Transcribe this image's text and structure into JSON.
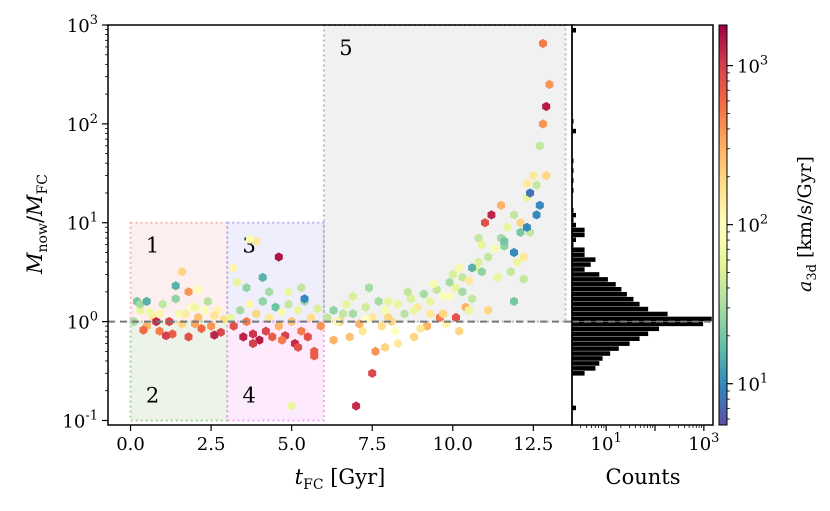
{
  "chart_data": [
    {
      "type": "scatter",
      "description_of_marks": "hexbin points colored by a_3d (log color scale)",
      "xlabel": "t_FC [Gyr]",
      "ylabel": "M_now/M_FC",
      "xlim": [
        -0.7,
        13.7
      ],
      "ylim": [
        0.09,
        1000
      ],
      "yscale": "log",
      "xticks": [
        "0.0",
        "2.5",
        "5.0",
        "7.5",
        "10.0",
        "12.5"
      ],
      "yticks": [
        "10^-1",
        "10^0",
        "10^1",
        "10^2",
        "10^3"
      ],
      "reference_line_y": 1.0,
      "regions": [
        {
          "label": "1",
          "x": [
            0,
            3
          ],
          "y": [
            1,
            10
          ],
          "color": "#f4b6b6"
        },
        {
          "label": "2",
          "x": [
            0,
            3
          ],
          "y": [
            0.1,
            1
          ],
          "color": "#a9cfa0"
        },
        {
          "label": "3",
          "x": [
            3,
            6
          ],
          "y": [
            1,
            10
          ],
          "color": "#b3b3f0"
        },
        {
          "label": "4",
          "x": [
            3,
            6
          ],
          "y": [
            0.1,
            1
          ],
          "color": "#f4a6f4"
        },
        {
          "label": "5",
          "x": [
            6,
            13.5
          ],
          "y": [
            1,
            1000
          ],
          "color": "#bdbdbd"
        }
      ],
      "points": [
        [
          0.1,
          1.0,
          30
        ],
        [
          0.3,
          1.3,
          60
        ],
        [
          0.5,
          0.9,
          300
        ],
        [
          0.7,
          1.1,
          150
        ],
        [
          0.9,
          0.8,
          500
        ],
        [
          1.0,
          1.5,
          40
        ],
        [
          1.2,
          1.0,
          900
        ],
        [
          1.3,
          0.75,
          700
        ],
        [
          1.5,
          1.2,
          80
        ],
        [
          1.6,
          0.95,
          200
        ],
        [
          1.8,
          0.7,
          800
        ],
        [
          1.9,
          1.4,
          100
        ],
        [
          2.1,
          1.1,
          250
        ],
        [
          2.2,
          0.85,
          600
        ],
        [
          2.4,
          1.6,
          35
        ],
        [
          2.5,
          0.9,
          400
        ],
        [
          2.7,
          1.3,
          120
        ],
        [
          2.8,
          0.78,
          900
        ],
        [
          2.9,
          1.05,
          180
        ],
        [
          0.2,
          1.6,
          20
        ],
        [
          0.4,
          0.82,
          600
        ],
        [
          0.6,
          1.25,
          70
        ],
        [
          0.8,
          1.0,
          1200
        ],
        [
          1.1,
          0.72,
          1000
        ],
        [
          1.4,
          1.7,
          25
        ],
        [
          1.7,
          1.2,
          140
        ],
        [
          2.0,
          0.95,
          350
        ],
        [
          2.3,
          1.3,
          90
        ],
        [
          2.6,
          0.73,
          1300
        ],
        [
          1.6,
          3.2,
          200
        ],
        [
          1.4,
          2.3,
          15
        ],
        [
          2.1,
          2.1,
          90
        ],
        [
          0.3,
          1.5,
          30
        ],
        [
          2.0,
          1.4,
          70
        ],
        [
          1.8,
          2.0,
          400
        ],
        [
          0.9,
          1.2,
          120
        ],
        [
          2.6,
          1.15,
          160
        ],
        [
          0.5,
          1.6,
          15
        ],
        [
          3.1,
          1.1,
          60
        ],
        [
          3.2,
          0.9,
          800
        ],
        [
          3.4,
          1.3,
          30
        ],
        [
          3.5,
          0.7,
          1300
        ],
        [
          3.6,
          1.0,
          500
        ],
        [
          3.7,
          1.5,
          120
        ],
        [
          3.8,
          0.75,
          1100
        ],
        [
          3.9,
          1.2,
          200
        ],
        [
          4.0,
          0.65,
          1400
        ],
        [
          4.1,
          1.6,
          25
        ],
        [
          4.2,
          0.8,
          900
        ],
        [
          4.3,
          1.1,
          150
        ],
        [
          4.4,
          0.7,
          700
        ],
        [
          4.5,
          1.4,
          18
        ],
        [
          4.6,
          0.9,
          300
        ],
        [
          4.7,
          1.25,
          80
        ],
        [
          4.8,
          0.72,
          1000
        ],
        [
          4.9,
          1.5,
          40
        ],
        [
          5.0,
          1.0,
          250
        ],
        [
          5.1,
          0.6,
          1200
        ],
        [
          5.2,
          1.3,
          60
        ],
        [
          5.3,
          0.8,
          500
        ],
        [
          5.4,
          1.6,
          30
        ],
        [
          5.5,
          0.7,
          800
        ],
        [
          5.6,
          1.1,
          180
        ],
        [
          5.7,
          0.5,
          700
        ],
        [
          5.8,
          1.35,
          50
        ],
        [
          5.9,
          0.9,
          400
        ],
        [
          3.3,
          2.5,
          60
        ],
        [
          3.6,
          2.2,
          25
        ],
        [
          3.9,
          6.5,
          150
        ],
        [
          4.6,
          4.5,
          1500
        ],
        [
          4.1,
          2.8,
          15
        ],
        [
          3.7,
          6.8,
          80
        ],
        [
          3.8,
          0.6,
          1000
        ],
        [
          4.7,
          0.65,
          500
        ],
        [
          5.2,
          0.55,
          800
        ],
        [
          5.0,
          0.14,
          60
        ],
        [
          5.7,
          0.45,
          700
        ],
        [
          5.4,
          1.7,
          10
        ],
        [
          4.3,
          2.0,
          30
        ],
        [
          4.9,
          2.0,
          60
        ],
        [
          5.3,
          2.2,
          40
        ],
        [
          3.2,
          3.5,
          120
        ],
        [
          6.1,
          1.1,
          40
        ],
        [
          6.3,
          1.3,
          25
        ],
        [
          6.5,
          1.0,
          200
        ],
        [
          6.7,
          1.5,
          60
        ],
        [
          6.9,
          1.2,
          30
        ],
        [
          7.1,
          0.95,
          300
        ],
        [
          7.3,
          1.4,
          45
        ],
        [
          7.5,
          1.1,
          150
        ],
        [
          7.7,
          1.6,
          30
        ],
        [
          7.9,
          1.3,
          80
        ],
        [
          8.1,
          1.0,
          200
        ],
        [
          8.3,
          1.5,
          60
        ],
        [
          8.5,
          1.2,
          35
        ],
        [
          8.7,
          1.7,
          50
        ],
        [
          8.9,
          1.4,
          150
        ],
        [
          9.1,
          1.9,
          30
        ],
        [
          9.3,
          1.6,
          60
        ],
        [
          9.5,
          2.1,
          40
        ],
        [
          9.7,
          1.8,
          90
        ],
        [
          9.9,
          2.5,
          30
        ],
        [
          10.1,
          2.2,
          60
        ],
        [
          10.3,
          2.8,
          40
        ],
        [
          10.5,
          2.6,
          150
        ],
        [
          10.7,
          3.5,
          60
        ],
        [
          10.9,
          3.2,
          25
        ],
        [
          11.1,
          4.5,
          40
        ],
        [
          11.3,
          5.5,
          80
        ],
        [
          11.5,
          7.0,
          30
        ],
        [
          11.7,
          9.0,
          60
        ],
        [
          11.9,
          12.0,
          40
        ],
        [
          12.1,
          10.0,
          200
        ],
        [
          12.3,
          18.0,
          60
        ],
        [
          12.5,
          30.0,
          150
        ],
        [
          12.7,
          60.0,
          40
        ],
        [
          12.8,
          100.0,
          400
        ],
        [
          12.9,
          30.0,
          200
        ],
        [
          13.0,
          250.0,
          400
        ],
        [
          12.8,
          650.0,
          500
        ],
        [
          12.9,
          150.0,
          1400
        ],
        [
          12.6,
          12.0,
          10
        ],
        [
          12.3,
          25.0,
          150
        ],
        [
          12.1,
          8.0,
          20
        ],
        [
          11.9,
          5.0,
          10
        ],
        [
          11.5,
          15.0,
          300
        ],
        [
          11.2,
          12.0,
          1300
        ],
        [
          11.0,
          10.0,
          800
        ],
        [
          10.8,
          7.0,
          40
        ],
        [
          10.6,
          3.5,
          15
        ],
        [
          10.4,
          1.4,
          300
        ],
        [
          10.2,
          0.8,
          200
        ],
        [
          9.6,
          1.1,
          500
        ],
        [
          9.2,
          0.9,
          300
        ],
        [
          8.8,
          0.7,
          200
        ],
        [
          8.3,
          0.6,
          150
        ],
        [
          7.9,
          0.55,
          200
        ],
        [
          7.6,
          0.5,
          400
        ],
        [
          7.5,
          0.3,
          900
        ],
        [
          7.0,
          0.14,
          1200
        ],
        [
          6.3,
          0.65,
          300
        ],
        [
          6.8,
          0.7,
          250
        ],
        [
          7.2,
          0.8,
          150
        ],
        [
          7.8,
          0.9,
          180
        ],
        [
          8.2,
          0.8,
          100
        ],
        [
          9.0,
          0.85,
          150
        ],
        [
          9.8,
          0.95,
          120
        ],
        [
          10.5,
          1.3,
          60
        ],
        [
          11.6,
          5.8,
          25
        ],
        [
          12.7,
          15.0,
          10
        ],
        [
          12.6,
          24.0,
          40
        ],
        [
          12.4,
          20.0,
          8
        ],
        [
          6.9,
          1.8,
          50
        ],
        [
          7.4,
          2.2,
          30
        ],
        [
          8.0,
          1.6,
          60
        ],
        [
          8.6,
          2.0,
          40
        ],
        [
          9.4,
          2.4,
          80
        ],
        [
          10.0,
          3.0,
          50
        ],
        [
          10.2,
          3.5,
          80
        ],
        [
          10.8,
          4.0,
          50
        ],
        [
          11.4,
          2.8,
          60
        ],
        [
          11.8,
          3.2,
          40
        ],
        [
          12.0,
          4.0,
          60
        ],
        [
          12.2,
          4.5,
          150
        ],
        [
          12.4,
          8.0,
          40
        ],
        [
          11.6,
          6.5,
          20
        ],
        [
          10.9,
          6.0,
          60
        ],
        [
          10.3,
          2.0,
          30
        ],
        [
          9.9,
          1.8,
          90
        ],
        [
          9.3,
          1.2,
          150
        ],
        [
          8.8,
          1.3,
          60
        ],
        [
          8.0,
          1.1,
          200
        ],
        [
          7.3,
          1.05,
          100
        ],
        [
          6.6,
          1.2,
          40
        ],
        [
          6.4,
          1.0,
          80
        ],
        [
          11.9,
          1.6,
          20
        ],
        [
          12.2,
          2.7,
          40
        ],
        [
          11.1,
          1.3,
          200
        ],
        [
          10.6,
          1.7,
          40
        ],
        [
          10.1,
          1.1,
          800
        ],
        [
          9.7,
          1.2,
          200
        ],
        [
          12.3,
          9.0,
          10
        ]
      ]
    },
    {
      "type": "bar",
      "orientation": "horizontal",
      "description_of_marks": "histogram of M_now/M_FC (log x counts)",
      "xlabel": "Counts",
      "xscale": "log",
      "xticks": [
        "10^1",
        "10^3"
      ],
      "bins_log10_y": [
        [
          2.92,
          2
        ],
        [
          2.0,
          1
        ],
        [
          1.9,
          2
        ],
        [
          1.6,
          1
        ],
        [
          1.5,
          1
        ],
        [
          1.4,
          1
        ],
        [
          1.3,
          1
        ],
        [
          1.1,
          1
        ],
        [
          1.05,
          2
        ],
        [
          1.0,
          1
        ],
        [
          0.95,
          2
        ],
        [
          0.9,
          3
        ],
        [
          0.85,
          3
        ],
        [
          0.8,
          2
        ],
        [
          0.75,
          1
        ],
        [
          0.7,
          3
        ],
        [
          0.65,
          3
        ],
        [
          0.6,
          5
        ],
        [
          0.55,
          4
        ],
        [
          0.5,
          3
        ],
        [
          0.45,
          6
        ],
        [
          0.4,
          9
        ],
        [
          0.35,
          13
        ],
        [
          0.3,
          17
        ],
        [
          0.25,
          22
        ],
        [
          0.2,
          30
        ],
        [
          0.15,
          40
        ],
        [
          0.1,
          60
        ],
        [
          0.05,
          150
        ],
        [
          0.0,
          1200
        ],
        [
          -0.05,
          800
        ],
        [
          -0.1,
          100
        ],
        [
          -0.15,
          60
        ],
        [
          -0.2,
          40
        ],
        [
          -0.25,
          25
        ],
        [
          -0.3,
          15
        ],
        [
          -0.35,
          10
        ],
        [
          -0.4,
          7
        ],
        [
          -0.45,
          6
        ],
        [
          -0.5,
          5
        ],
        [
          -0.55,
          3
        ],
        [
          -0.9,
          2
        ]
      ]
    },
    {
      "type": "colorbar",
      "label": "a_3d [km/s/Gyr]",
      "scale": "log",
      "range": [
        5.5,
        1800
      ],
      "ticks": [
        "10^1",
        "10^2",
        "10^3"
      ],
      "colormap": "Spectral_r"
    }
  ]
}
